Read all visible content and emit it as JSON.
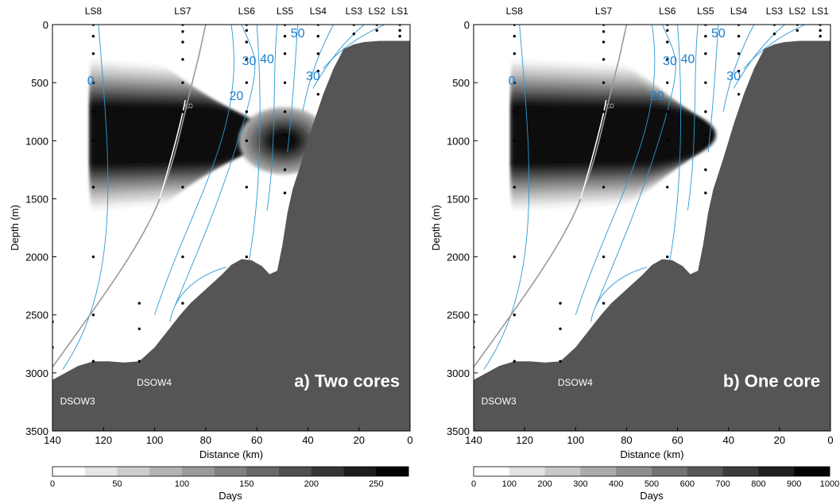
{
  "chart_data": [
    {
      "type": "heatmap",
      "panel_label": "a) Two cores",
      "xlabel": "Distance (km)",
      "ylabel": "Depth (m)",
      "xlim": [
        140,
        0
      ],
      "ylim": [
        3500,
        0
      ],
      "x_ticks": [
        "140",
        "120",
        "100",
        "80",
        "60",
        "40",
        "20",
        "0"
      ],
      "y_ticks": [
        "0",
        "500",
        "1000",
        "1500",
        "2000",
        "2500",
        "3000",
        "3500"
      ],
      "stations": [
        {
          "name": "LS8",
          "x": 124
        },
        {
          "name": "LS7",
          "x": 89
        },
        {
          "name": "LS6",
          "x": 64
        },
        {
          "name": "LS5",
          "x": 49
        },
        {
          "name": "LS4",
          "x": 36
        },
        {
          "name": "LS3",
          "x": 22
        },
        {
          "name": "LS2",
          "x": 13
        },
        {
          "name": "LS1",
          "x": 4
        }
      ],
      "contour_labels": [
        "0",
        "20",
        "30",
        "40",
        "30",
        "50"
      ],
      "isopycnal_label": "8",
      "water_masses": [
        "DSOW3",
        "DSOW4"
      ],
      "colorbar": {
        "label": "Days",
        "ticks": [
          "0",
          "50",
          "100",
          "150",
          "200",
          "250"
        ],
        "range": [
          0,
          275
        ],
        "levels": 11
      },
      "cores": [
        {
          "x_range": [
            125,
            58
          ],
          "depth_center": 950,
          "peak": 275
        },
        {
          "x_range": [
            55,
            44
          ],
          "depth_center": 1000,
          "peak": 250
        }
      ]
    },
    {
      "type": "heatmap",
      "panel_label": "b) One core",
      "xlabel": "Distance (km)",
      "ylabel": "Depth (m)",
      "xlim": [
        140,
        0
      ],
      "ylim": [
        3500,
        0
      ],
      "x_ticks": [
        "140",
        "120",
        "100",
        "80",
        "60",
        "40",
        "20",
        "0"
      ],
      "y_ticks": [
        "0",
        "500",
        "1000",
        "1500",
        "2000",
        "2500",
        "3000",
        "3500"
      ],
      "stations": [
        {
          "name": "LS8",
          "x": 124
        },
        {
          "name": "LS7",
          "x": 89
        },
        {
          "name": "LS6",
          "x": 64
        },
        {
          "name": "LS5",
          "x": 49
        },
        {
          "name": "LS4",
          "x": 36
        },
        {
          "name": "LS3",
          "x": 22
        },
        {
          "name": "LS2",
          "x": 13
        },
        {
          "name": "LS1",
          "x": 4
        }
      ],
      "contour_labels": [
        "0",
        "20",
        "30",
        "40",
        "30",
        "50"
      ],
      "isopycnal_label": "8",
      "water_masses": [
        "DSOW3",
        "DSOW4"
      ],
      "colorbar": {
        "label": "Days",
        "ticks": [
          "0",
          "100",
          "200",
          "300",
          "400",
          "500",
          "600",
          "700",
          "800",
          "900",
          "1000"
        ],
        "range": [
          0,
          1000
        ],
        "levels": 10
      },
      "cores": [
        {
          "x_range": [
            125,
            45
          ],
          "depth_center": 950,
          "peak": 1000
        }
      ]
    }
  ]
}
